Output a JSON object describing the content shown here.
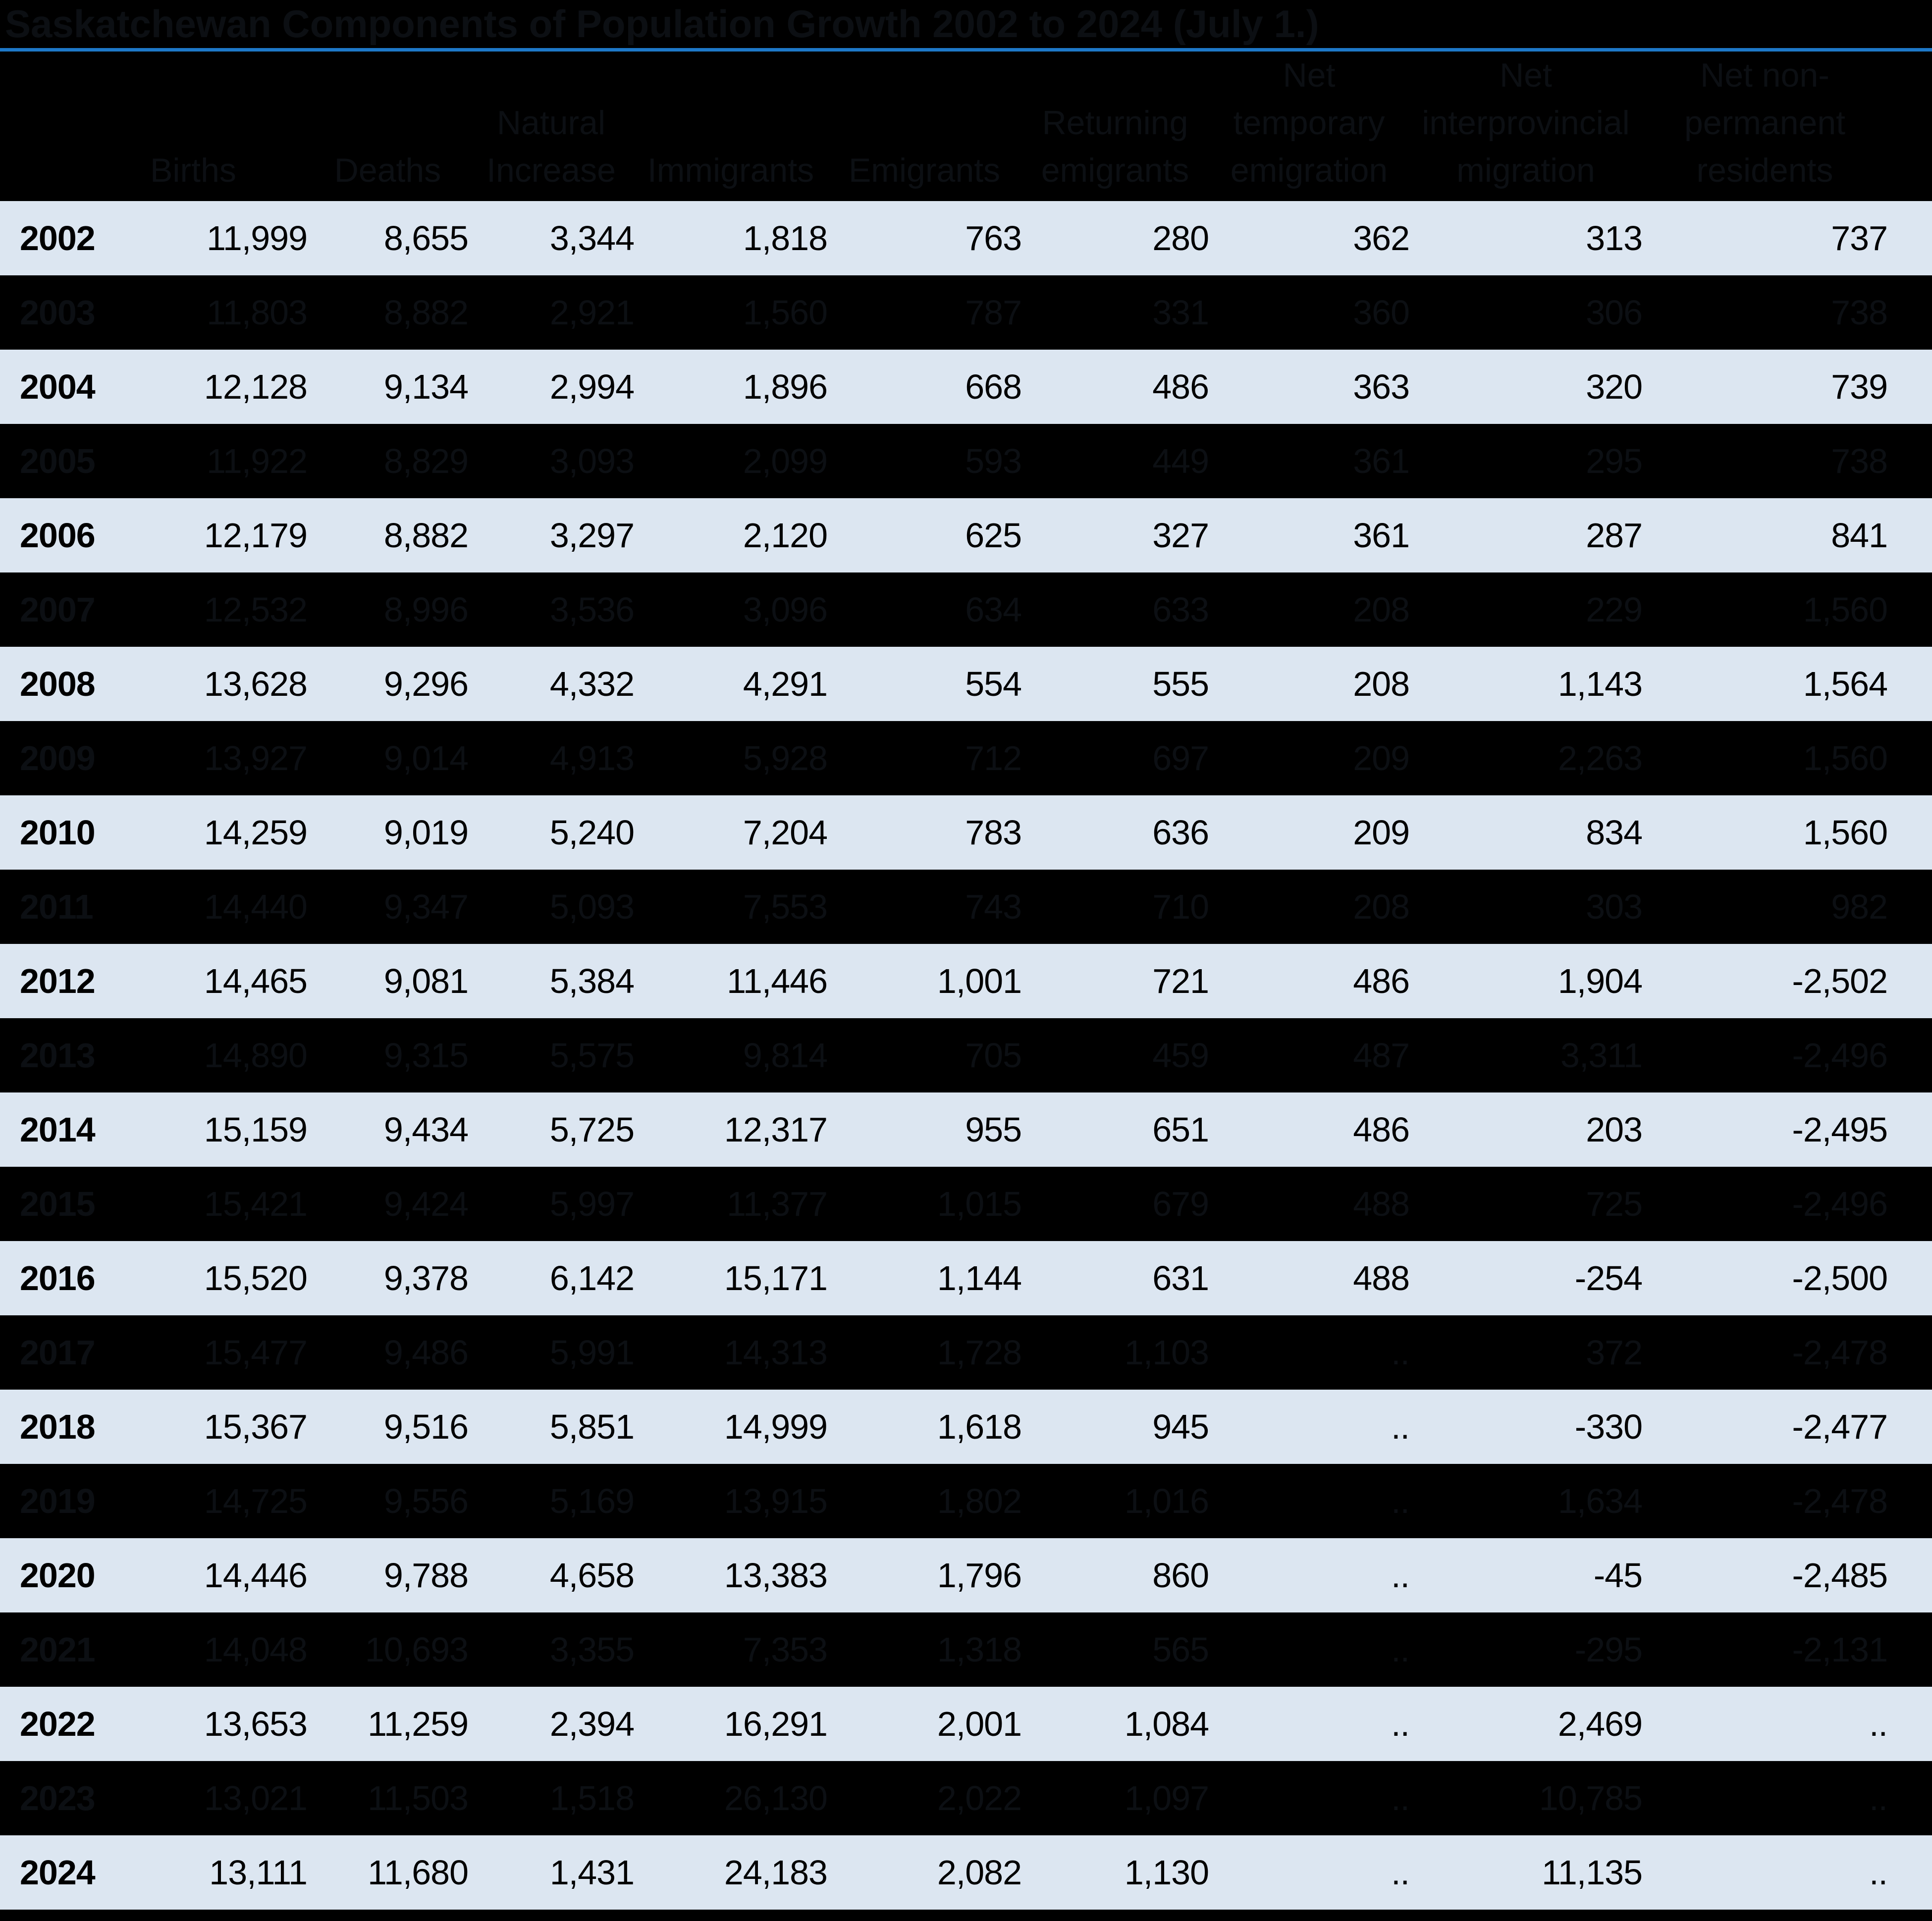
{
  "title": "Saskatchewan Components of Population Growth 2002 to 2024 (July 1.)",
  "colors": {
    "page_bg": "#000000",
    "accent_line": "#1e78c8",
    "light_row_bg": "#dce6f1",
    "dark_row_bg": "#000000",
    "light_row_text": "#000000",
    "hidden_text": "#0c0f13"
  },
  "table": {
    "year_header": "",
    "not_available_symbol": "..",
    "columns": [
      {
        "id": "births",
        "header_lines": [
          "Births"
        ]
      },
      {
        "id": "deaths",
        "header_lines": [
          "Deaths"
        ]
      },
      {
        "id": "natural-increase",
        "header_lines": [
          "Natural",
          "Increase"
        ]
      },
      {
        "id": "immigrants",
        "header_lines": [
          "Immigrants"
        ]
      },
      {
        "id": "emigrants",
        "header_lines": [
          "Emigrants"
        ]
      },
      {
        "id": "returning-emigrants",
        "header_lines": [
          "Returning",
          "emigrants"
        ]
      },
      {
        "id": "net-temporary-emigration",
        "header_lines": [
          "Net",
          "temporary",
          "emigration"
        ]
      },
      {
        "id": "net-interprovincial-migration",
        "header_lines": [
          "Net",
          "interprovincial",
          "migration"
        ]
      },
      {
        "id": "net-non-permanent-residents",
        "header_lines": [
          "Net non-",
          "permanent",
          "residents"
        ]
      }
    ]
  },
  "chart_data": {
    "type": "table",
    "title": "Saskatchewan Components of Population Growth 2002 to 2024 (July 1.)",
    "x": [
      2002,
      2003,
      2004,
      2005,
      2006,
      2007,
      2008,
      2009,
      2010,
      2011,
      2012,
      2013,
      2014,
      2015,
      2016,
      2017,
      2018,
      2019,
      2020,
      2021,
      2022,
      2023,
      2024
    ],
    "series": [
      {
        "name": "Births",
        "values": [
          11999,
          11803,
          12128,
          11922,
          12179,
          12532,
          13628,
          13927,
          14259,
          14440,
          14465,
          14890,
          15159,
          15421,
          15520,
          15477,
          15367,
          14725,
          14446,
          14048,
          13653,
          13021,
          13111
        ]
      },
      {
        "name": "Deaths",
        "values": [
          8655,
          8882,
          9134,
          8829,
          8882,
          8996,
          9296,
          9014,
          9019,
          9347,
          9081,
          9315,
          9434,
          9424,
          9378,
          9486,
          9516,
          9556,
          9788,
          10693,
          11259,
          11503,
          11680
        ]
      },
      {
        "name": "Natural Increase",
        "values": [
          3344,
          2921,
          2994,
          3093,
          3297,
          3536,
          4332,
          4913,
          5240,
          5093,
          5384,
          5575,
          5725,
          5997,
          6142,
          5991,
          5851,
          5169,
          4658,
          3355,
          2394,
          1518,
          1431
        ]
      },
      {
        "name": "Immigrants",
        "values": [
          1818,
          1560,
          1896,
          2099,
          2120,
          3096,
          4291,
          5928,
          7204,
          7553,
          11446,
          9814,
          12317,
          11377,
          15171,
          14313,
          14999,
          13915,
          13383,
          7353,
          16291,
          26130,
          24183
        ]
      },
      {
        "name": "Emigrants",
        "values": [
          763,
          787,
          668,
          593,
          625,
          634,
          554,
          712,
          783,
          743,
          1001,
          705,
          955,
          1015,
          1144,
          1728,
          1618,
          1802,
          1796,
          1318,
          2001,
          2022,
          2082
        ]
      },
      {
        "name": "Returning emigrants",
        "values": [
          280,
          331,
          486,
          449,
          327,
          633,
          555,
          697,
          636,
          710,
          721,
          459,
          651,
          679,
          631,
          1103,
          945,
          1016,
          860,
          565,
          1084,
          1097,
          1130
        ]
      },
      {
        "name": "Net temporary emigration",
        "values": [
          362,
          360,
          363,
          361,
          361,
          208,
          208,
          209,
          209,
          208,
          486,
          487,
          486,
          488,
          488,
          "..",
          "..",
          "..",
          "..",
          "..",
          "..",
          "..",
          ".."
        ]
      },
      {
        "name": "Net interprovincial migration",
        "values": [
          313,
          306,
          320,
          295,
          287,
          229,
          1143,
          2263,
          834,
          303,
          1904,
          3311,
          203,
          725,
          -254,
          372,
          -330,
          1634,
          -45,
          -295,
          2469,
          10785,
          11135
        ]
      },
      {
        "name": "Net non-permanent residents",
        "values": [
          737,
          738,
          739,
          738,
          841,
          1560,
          1564,
          1560,
          1560,
          982,
          -2502,
          -2496,
          -2495,
          -2496,
          -2500,
          -2478,
          -2477,
          -2478,
          -2485,
          -2131,
          "..",
          "..",
          ".."
        ]
      }
    ]
  }
}
